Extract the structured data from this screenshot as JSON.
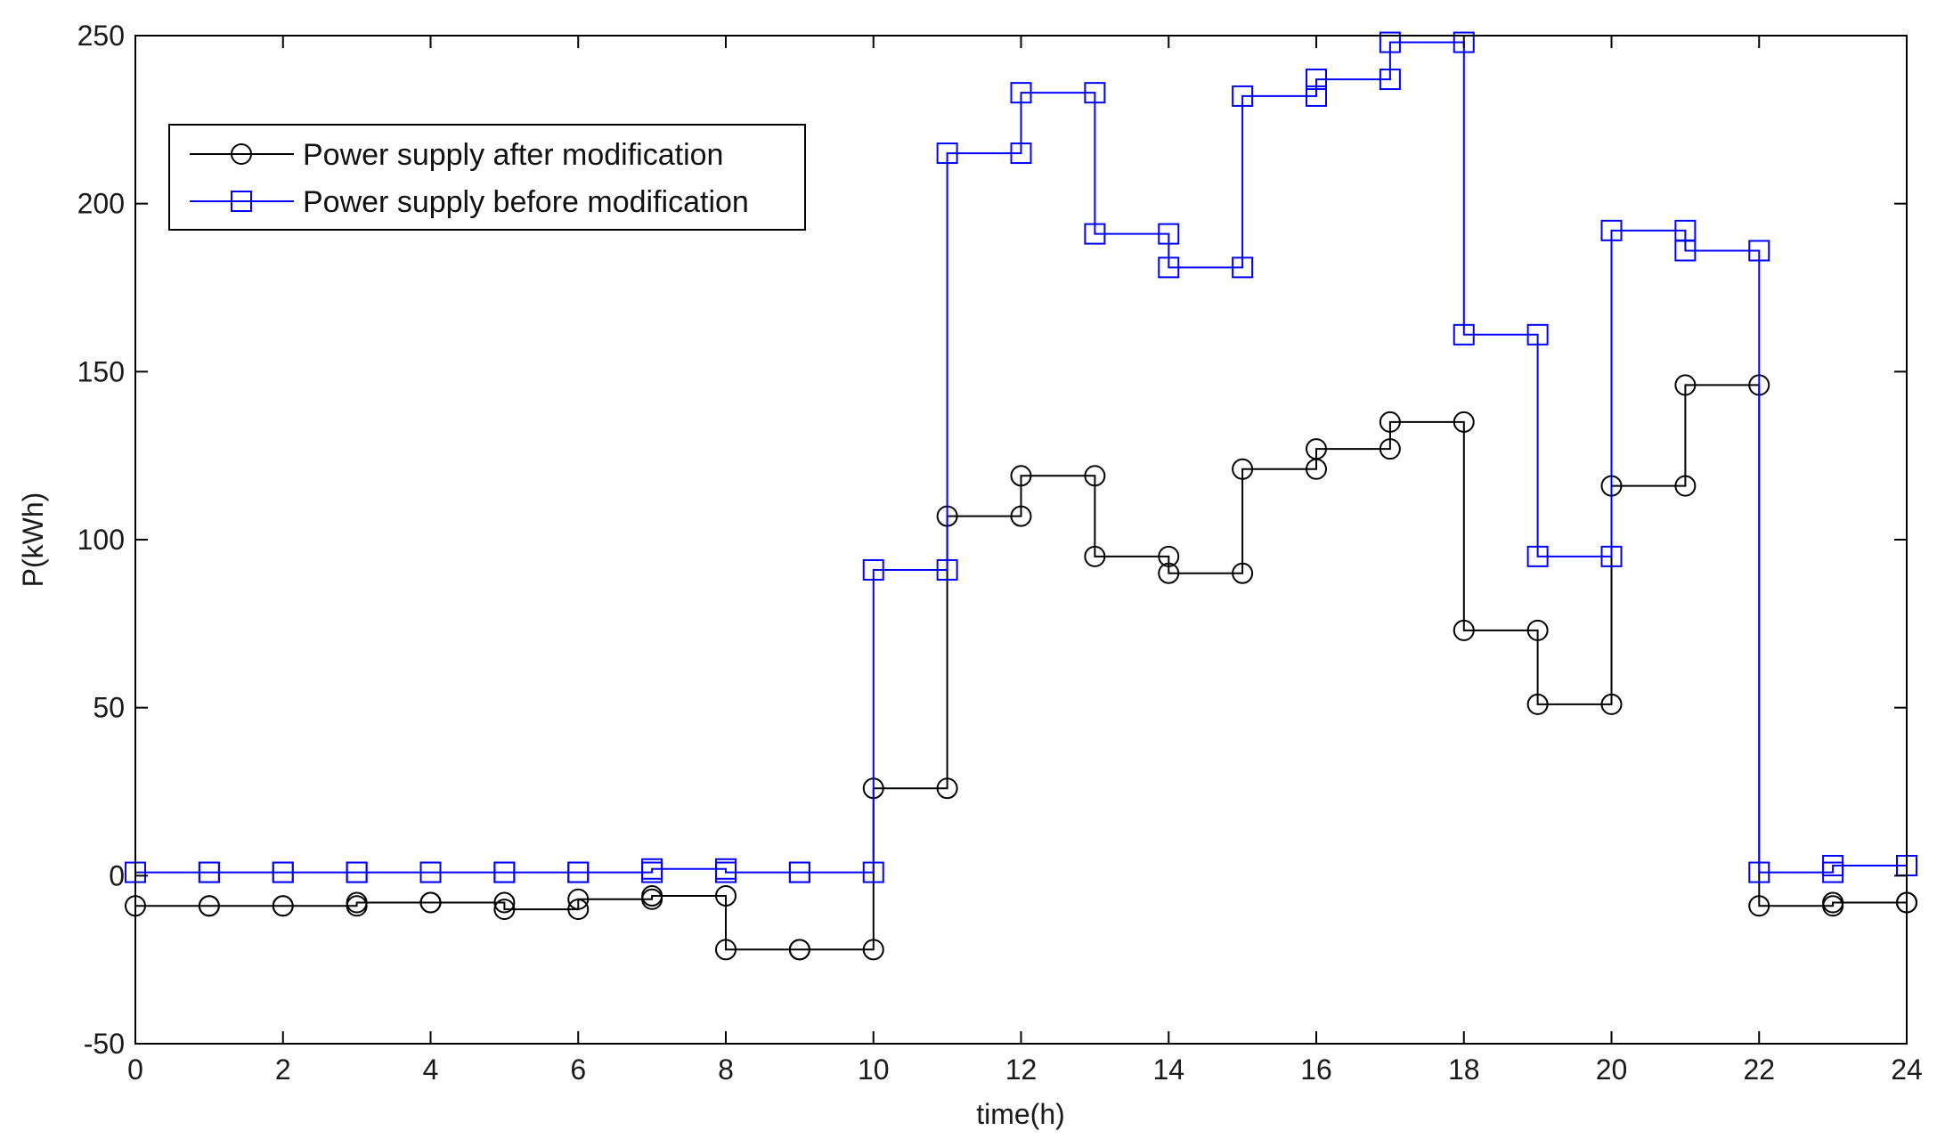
{
  "chart_data": {
    "type": "line",
    "step": true,
    "xlabel": "time(h)",
    "ylabel": "P(kWh)",
    "xlim": [
      0,
      24
    ],
    "ylim": [
      -50,
      250
    ],
    "xticks": [
      0,
      2,
      4,
      6,
      8,
      10,
      12,
      14,
      16,
      18,
      20,
      22,
      24
    ],
    "yticks": [
      -50,
      0,
      50,
      100,
      150,
      200,
      250
    ],
    "grid": false,
    "legend_position": "top-left",
    "series": [
      {
        "name": "Power supply after modification",
        "color": "#000000",
        "marker": "circle",
        "x": [
          0,
          1,
          2,
          3,
          4,
          5,
          6,
          7,
          8,
          9,
          10,
          11,
          12,
          13,
          14,
          15,
          16,
          17,
          18,
          19,
          20,
          21,
          22,
          23,
          24
        ],
        "values": [
          -9,
          -9,
          -9,
          -8,
          -8,
          -10,
          -7,
          -6,
          -22,
          -22,
          26,
          107,
          119,
          95,
          90,
          121,
          127,
          135,
          73,
          51,
          116,
          146,
          -9,
          -8,
          -8
        ]
      },
      {
        "name": "Power supply before modification",
        "color": "#0000ff",
        "marker": "square",
        "x": [
          0,
          1,
          2,
          3,
          4,
          5,
          6,
          7,
          8,
          9,
          10,
          11,
          12,
          13,
          14,
          15,
          16,
          17,
          18,
          19,
          20,
          21,
          22,
          23,
          24
        ],
        "values": [
          1,
          1,
          1,
          1,
          1,
          1,
          1,
          2,
          1,
          1,
          91,
          215,
          233,
          191,
          181,
          232,
          237,
          248,
          161,
          95,
          192,
          186,
          1,
          3,
          3
        ]
      }
    ]
  }
}
